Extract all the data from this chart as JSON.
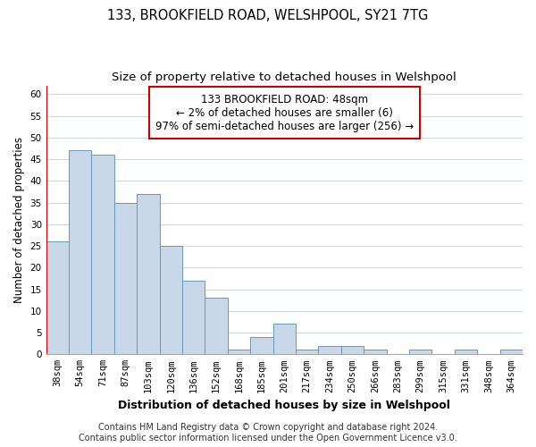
{
  "title": "133, BROOKFIELD ROAD, WELSHPOOL, SY21 7TG",
  "subtitle": "Size of property relative to detached houses in Welshpool",
  "xlabel": "Distribution of detached houses by size in Welshpool",
  "ylabel": "Number of detached properties",
  "bar_labels": [
    "38sqm",
    "54sqm",
    "71sqm",
    "87sqm",
    "103sqm",
    "120sqm",
    "136sqm",
    "152sqm",
    "168sqm",
    "185sqm",
    "201sqm",
    "217sqm",
    "234sqm",
    "250sqm",
    "266sqm",
    "283sqm",
    "299sqm",
    "315sqm",
    "331sqm",
    "348sqm",
    "364sqm"
  ],
  "bar_values": [
    26,
    47,
    46,
    35,
    37,
    25,
    17,
    13,
    1,
    4,
    7,
    1,
    2,
    2,
    1,
    0,
    1,
    0,
    1,
    0,
    1
  ],
  "bar_color": "#c8d8e8",
  "bar_edge_color": "#6699bb",
  "annotation_box_text": "133 BROOKFIELD ROAD: 48sqm\n← 2% of detached houses are smaller (6)\n97% of semi-detached houses are larger (256) →",
  "annotation_box_edge_color": "#cc0000",
  "red_line_color": "#cc0000",
  "ylim": [
    0,
    62
  ],
  "yticks": [
    0,
    5,
    10,
    15,
    20,
    25,
    30,
    35,
    40,
    45,
    50,
    55,
    60
  ],
  "footer_line1": "Contains HM Land Registry data © Crown copyright and database right 2024.",
  "footer_line2": "Contains public sector information licensed under the Open Government Licence v3.0.",
  "background_color": "#ffffff",
  "grid_color": "#d0d8e0",
  "title_fontsize": 10.5,
  "subtitle_fontsize": 9.5,
  "xlabel_fontsize": 9,
  "ylabel_fontsize": 8.5,
  "tick_fontsize": 7.5,
  "annotation_fontsize": 8.5,
  "footer_fontsize": 7
}
